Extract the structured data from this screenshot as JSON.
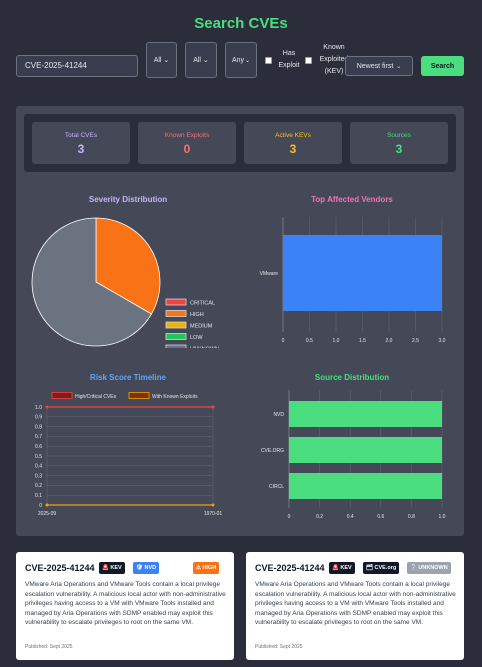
{
  "header": {
    "title": "Search CVEs"
  },
  "search": {
    "value": "CVE-2025-41244",
    "filter_1": "All ⌄",
    "filter_2": "All ⌄",
    "filter_3": "Any",
    "has_exploit_label": "Has Exploit",
    "known_exploited_label": "Known Exploited (KEV)",
    "sort": "Newest first",
    "button": "Search"
  },
  "stats": [
    {
      "label": "Total CVEs",
      "value": "3",
      "color": "#c4b5fd"
    },
    {
      "label": "Known Exploits",
      "value": "0",
      "color": "#f87171"
    },
    {
      "label": "Active KEVs",
      "value": "3",
      "color": "#fbbf24"
    },
    {
      "label": "Sources",
      "value": "3",
      "color": "#4ade80"
    }
  ],
  "charts": {
    "severity_title": "Severity Distribution",
    "vendors_title": "Top Affected Vendors",
    "timeline_title": "Risk Score Timeline",
    "source_title": "Source Distribution"
  },
  "colors": {
    "critical": "#ef4444",
    "high": "#f97316",
    "medium": "#eab308",
    "low": "#22c55e",
    "unknown": "#6b7280",
    "vendor_bar": "#3b82f6",
    "source_bar": "#4ade80"
  },
  "chart_data": [
    {
      "type": "pie",
      "title": "Severity Distribution",
      "categories": [
        "CRITICAL",
        "HIGH",
        "MEDIUM",
        "LOW",
        "UNKNOWN"
      ],
      "values": [
        0,
        1,
        0,
        0,
        2
      ],
      "legend": "right"
    },
    {
      "type": "bar",
      "orientation": "horizontal",
      "title": "Top Affected Vendors",
      "categories": [
        "VMware"
      ],
      "values": [
        3
      ],
      "xlim": [
        0,
        3
      ],
      "xticks": [
        "0",
        "0.5",
        "1.0",
        "1.5",
        "2.0",
        "2.5",
        "3.0"
      ]
    },
    {
      "type": "line",
      "title": "Risk Score Timeline",
      "x": [
        "2025-09",
        "1970-01"
      ],
      "series": [
        {
          "name": "High/Critical CVEs",
          "values": [
            1.0,
            1.0
          ]
        },
        {
          "name": "With Known Exploits",
          "values": [
            0,
            0
          ]
        }
      ],
      "ylim": [
        0,
        1
      ],
      "yticks": [
        "0",
        "0.1",
        "0.2",
        "0.3",
        "0.4",
        "0.5",
        "0.6",
        "0.7",
        "0.8",
        "0.9",
        "1.0"
      ],
      "legend": "top",
      "grid": true
    },
    {
      "type": "bar",
      "orientation": "horizontal",
      "title": "Source Distribution",
      "categories": [
        "NVD",
        "CVE.ORG",
        "CIRCL"
      ],
      "values": [
        1,
        1,
        1
      ],
      "xlim": [
        0,
        1
      ],
      "xticks": [
        "0",
        "0.2",
        "0.4",
        "0.6",
        "0.8",
        "1.0"
      ]
    }
  ],
  "cards": [
    {
      "id": "CVE-2025-41244",
      "badges": [
        "🚨 KEV",
        "🛡 NVD",
        "⚠ HIGH"
      ],
      "description": "VMware Aria Operations and VMware Tools contain a local privilege escalation vulnerability. A malicious local actor with non-administrative privileges having access to a VM with VMware Tools installed and managed by Aria Operations with SDMP enabled may exploit this vulnerability to escalate privileges to root on the same VM.",
      "published": "Published: Sept 2025"
    },
    {
      "id": "CVE-2025-41244",
      "badges": [
        "🚨 KEV",
        "🗂 CVE.org",
        "❔ UNKNOWN"
      ],
      "description": "VMware Aria Operations and VMware Tools contain a local privilege escalation vulnerability. A malicious local actor with non-administrative privileges having access to a VM with VMware Tools installed and managed by Aria Operations with SDMP enabled may exploit this vulnerability to escalate privileges to root on the same VM.",
      "published": "Published: Sept 2025"
    }
  ]
}
